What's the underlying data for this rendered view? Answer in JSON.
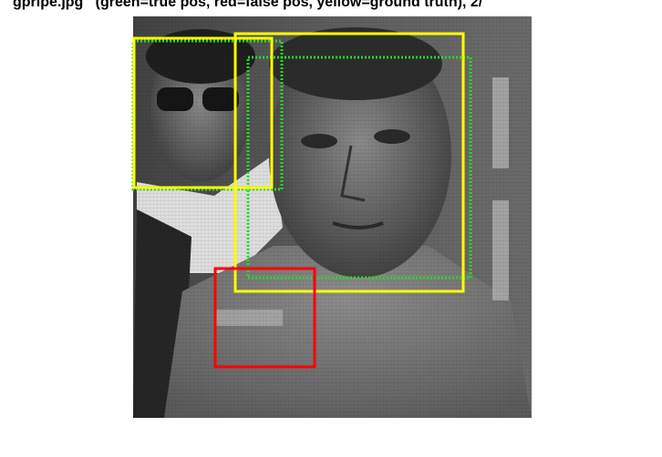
{
  "figure": {
    "title": "gpripe.jpg   (green=true pos, red=false pos, yellow=ground truth), 2/"
  }
}
